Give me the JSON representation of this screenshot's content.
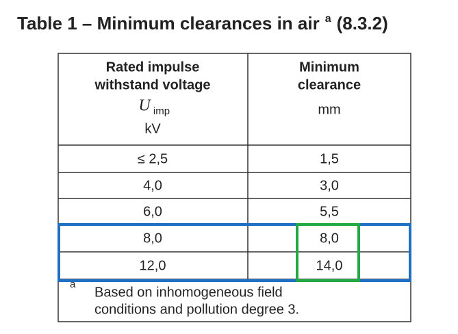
{
  "header": {
    "title": "Table 1 – Minimum clearances in air",
    "title_note": "a",
    "title_ref": "(8.3.2)"
  },
  "table": {
    "columns": [
      {
        "lines": [
          "Rated impulse",
          "withstand voltage"
        ],
        "symbol": "U",
        "symbol_sub": "imp",
        "unit": "kV"
      },
      {
        "lines": [
          "Minimum",
          "clearance"
        ],
        "unit": "mm"
      }
    ],
    "rows": [
      [
        "≤ 2,5",
        "1,5"
      ],
      [
        "4,0",
        "3,0"
      ],
      [
        "6,0",
        "5,5"
      ],
      [
        "8,0",
        "8,0"
      ],
      [
        "12,0",
        "14,0"
      ]
    ],
    "footnote": {
      "marker": "a",
      "lines": [
        "Based on inhomogeneous field",
        "conditions and pollution degree 3."
      ]
    }
  }
}
